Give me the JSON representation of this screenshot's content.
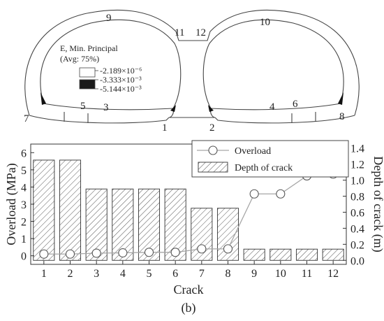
{
  "tunnel_diagram": {
    "crack_labels": [
      "1",
      "2",
      "3",
      "4",
      "5",
      "6",
      "7",
      "8",
      "9",
      "10",
      "11",
      "12"
    ],
    "legend": {
      "title_line1": "E, Min. Principal",
      "title_line2": "(Avg: 75%)",
      "levels": [
        "-2.189×10⁻⁶",
        "-3.333×10⁻³",
        "-5.144×10⁻³"
      ],
      "colors": [
        "#ffffff",
        "#1a1a1a"
      ]
    }
  },
  "chart_data": {
    "type": "bar",
    "categories": [
      "1",
      "2",
      "3",
      "4",
      "5",
      "6",
      "7",
      "8",
      "9",
      "10",
      "11",
      "12"
    ],
    "xlabel": "Crack",
    "ylabel": "Overload (MPa)",
    "y2label": "Depth of crack (m)",
    "ylim": [
      -0.5,
      6.5
    ],
    "y2lim": [
      -0.05,
      1.45
    ],
    "yticks": [
      0,
      1,
      2,
      3,
      4,
      5,
      6
    ],
    "y2ticks": [
      0.0,
      0.2,
      0.4,
      0.6,
      0.8,
      1.0,
      1.2,
      1.4
    ],
    "series": [
      {
        "name": "Overload",
        "type": "line",
        "axis": "left",
        "marker": "open-circle",
        "values": [
          0.1,
          0.1,
          0.15,
          0.17,
          0.2,
          0.2,
          0.4,
          0.4,
          3.6,
          3.6,
          4.65,
          4.75
        ]
      },
      {
        "name": "Depth of crack",
        "type": "bar",
        "axis": "right",
        "pattern": "hatched",
        "values": [
          1.25,
          1.25,
          0.89,
          0.89,
          0.89,
          0.89,
          0.65,
          0.65,
          0.14,
          0.14,
          0.14,
          0.14
        ]
      }
    ],
    "legend_position": "top-right",
    "panel_label": "(b)",
    "colors": {
      "line": "#a6a6a6",
      "bar_edge": "#333333",
      "hatch": "#555555"
    }
  }
}
